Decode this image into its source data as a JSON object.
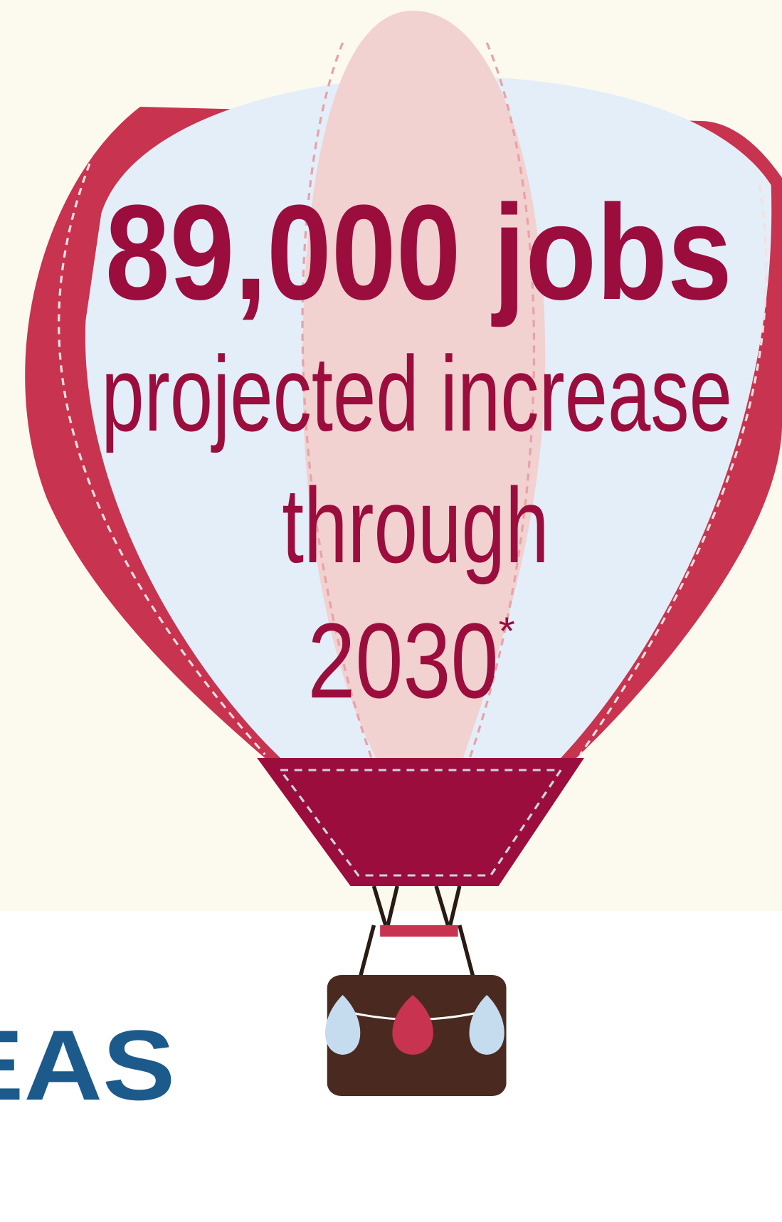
{
  "headline": "89,000 jobs",
  "lines": [
    "projected increase",
    "through",
    "2030"
  ],
  "footnote_mark": "*",
  "partial_heading": "REAS"
}
